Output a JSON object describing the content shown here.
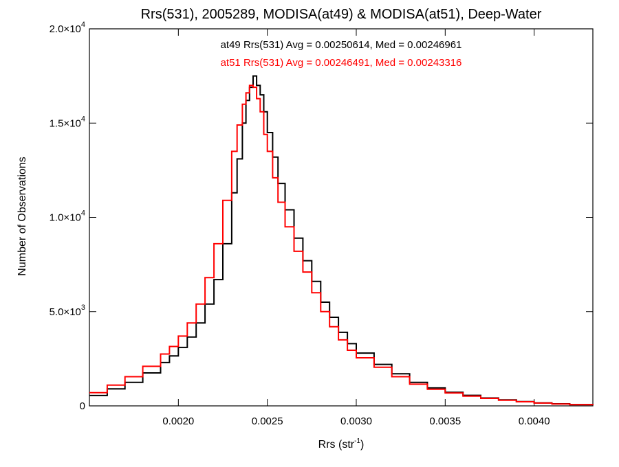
{
  "chart_data": {
    "type": "line",
    "title": "Rrs(531), 2005289, MODISA(at49) & MODISA(at51), Deep-Water",
    "xlabel": {
      "base": "Rrs (str",
      "sup": "-1",
      "tail": ")"
    },
    "ylabel": "Number of Observations",
    "annotations": [
      {
        "text": "at49 Rrs(531) Avg = 0.00250614, Med = 0.00246961",
        "color": "#000000"
      },
      {
        "text": "at51 Rrs(531) Avg = 0.00246491, Med = 0.00243316",
        "color": "#ff0000"
      }
    ],
    "xlim": [
      0.0015,
      0.00433
    ],
    "ylim": [
      0,
      20000
    ],
    "x_ticks": [
      {
        "value": 0.002,
        "label": "0.0020"
      },
      {
        "value": 0.0025,
        "label": "0.0025"
      },
      {
        "value": 0.003,
        "label": "0.0030"
      },
      {
        "value": 0.0035,
        "label": "0.0035"
      },
      {
        "value": 0.004,
        "label": "0.0040"
      }
    ],
    "y_ticks": [
      {
        "value": 0,
        "mant": "0",
        "exp": ""
      },
      {
        "value": 5000,
        "mant": "5.0×10",
        "exp": "3"
      },
      {
        "value": 10000,
        "mant": "1.0×10",
        "exp": "4"
      },
      {
        "value": 15000,
        "mant": "1.5×10",
        "exp": "4"
      },
      {
        "value": 20000,
        "mant": "2.0×10",
        "exp": "4"
      }
    ],
    "grid": false,
    "series": [
      {
        "color": "#000000",
        "x": [
          0.0015,
          0.0016,
          0.0017,
          0.0018,
          0.0019,
          0.00195,
          0.002,
          0.00205,
          0.0021,
          0.00215,
          0.0022,
          0.00225,
          0.0023,
          0.00233,
          0.00236,
          0.00238,
          0.0024,
          0.00242,
          0.00244,
          0.00246,
          0.00248,
          0.0025,
          0.00253,
          0.00256,
          0.0026,
          0.00265,
          0.0027,
          0.00275,
          0.0028,
          0.00285,
          0.0029,
          0.00295,
          0.003,
          0.0031,
          0.0032,
          0.0033,
          0.0034,
          0.0035,
          0.0036,
          0.0037,
          0.0038,
          0.0039,
          0.004,
          0.0041,
          0.0042,
          0.00433
        ],
        "y": [
          550,
          900,
          1250,
          1750,
          2300,
          2650,
          3100,
          3650,
          4400,
          5400,
          6700,
          8600,
          11300,
          13100,
          15000,
          16200,
          16900,
          17500,
          17000,
          16500,
          15600,
          14500,
          13200,
          11800,
          10400,
          8900,
          7700,
          6600,
          5500,
          4700,
          3900,
          3300,
          2800,
          2200,
          1700,
          1250,
          950,
          720,
          560,
          420,
          320,
          230,
          160,
          110,
          70,
          40
        ]
      },
      {
        "color": "#ff0000",
        "x": [
          0.0015,
          0.0016,
          0.0017,
          0.0018,
          0.0019,
          0.00195,
          0.002,
          0.00205,
          0.0021,
          0.00215,
          0.0022,
          0.00225,
          0.0023,
          0.00233,
          0.00236,
          0.00238,
          0.0024,
          0.00242,
          0.00244,
          0.00246,
          0.00248,
          0.0025,
          0.00253,
          0.00256,
          0.0026,
          0.00265,
          0.0027,
          0.00275,
          0.0028,
          0.00285,
          0.0029,
          0.00295,
          0.003,
          0.0031,
          0.0032,
          0.0033,
          0.0034,
          0.0035,
          0.0036,
          0.0037,
          0.0038,
          0.0039,
          0.004,
          0.0041,
          0.0042,
          0.00433
        ],
        "y": [
          700,
          1100,
          1550,
          2100,
          2750,
          3150,
          3700,
          4400,
          5400,
          6800,
          8600,
          10900,
          13500,
          14900,
          16000,
          16600,
          17000,
          16900,
          16300,
          15600,
          14400,
          13500,
          12100,
          10800,
          9500,
          8200,
          7100,
          6000,
          5000,
          4200,
          3500,
          2950,
          2550,
          2050,
          1550,
          1150,
          880,
          680,
          520,
          400,
          300,
          220,
          150,
          100,
          65,
          35
        ]
      }
    ]
  }
}
